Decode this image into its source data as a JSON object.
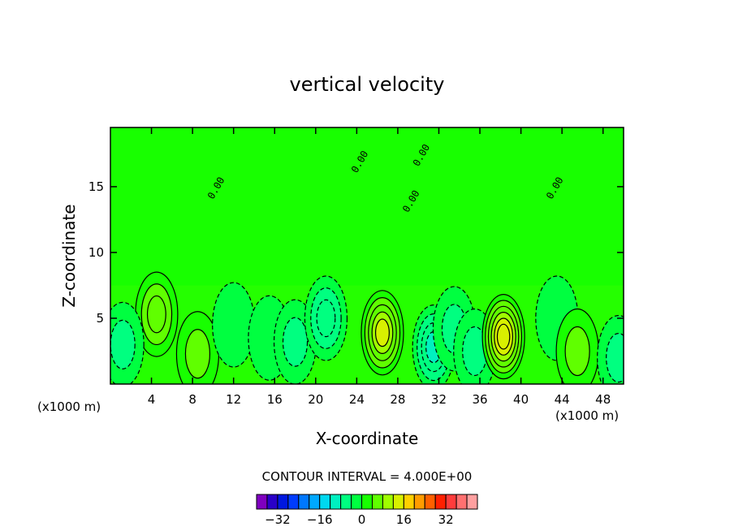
{
  "chart_data": {
    "type": "heatmap",
    "title": "vertical velocity",
    "xlabel": "X-coordinate",
    "ylabel": "Z-coordinate",
    "x_unit_left": "(x1000 m)",
    "x_unit_right": "(x1000 m)",
    "xlim": [
      0,
      50
    ],
    "ylim": [
      0,
      19.5
    ],
    "x_ticks": [
      "4",
      "8",
      "12",
      "16",
      "20",
      "24",
      "28",
      "32",
      "36",
      "40",
      "44",
      "48"
    ],
    "y_ticks": [
      "5",
      "10",
      "15"
    ],
    "contour_label": "CONTOUR INTERVAL = 4.000E+00",
    "contour_interval": 4,
    "contour_labels_on_plot": [
      "0.00",
      "0.00",
      "0.00",
      "0.00",
      "0.00"
    ],
    "colorbar": {
      "tick_labels": [
        "−32",
        "−16",
        "0",
        "16",
        "32"
      ],
      "tick_values": [
        -32,
        -16,
        0,
        16,
        32
      ],
      "colors": [
        "#7f00bf",
        "#2a00c8",
        "#0018e0",
        "#003cff",
        "#0078ff",
        "#00a8ff",
        "#00d8f0",
        "#00f0c0",
        "#00ff80",
        "#00ff40",
        "#18ff00",
        "#60ff00",
        "#a0ff00",
        "#d8f000",
        "#ffd000",
        "#ff9c00",
        "#ff6000",
        "#ff2000",
        "#ff3c3c",
        "#ff7070",
        "#ffa0a0"
      ]
    },
    "features": [
      {
        "x": 4.5,
        "z": 5.3,
        "w": 1.8
      },
      {
        "x": 8.5,
        "z": 2.3,
        "w": 1.5
      },
      {
        "x": 12,
        "z": 4.5,
        "w": -0.4
      },
      {
        "x": 15.5,
        "z": 3.5,
        "w": -0.9
      },
      {
        "x": 18,
        "z": 3.2,
        "w": -1.0
      },
      {
        "x": 21,
        "z": 5.0,
        "w": -1.6
      },
      {
        "x": 26.5,
        "z": 3.9,
        "w": 3.0
      },
      {
        "x": 31.5,
        "z": 2.8,
        "w": -2.2
      },
      {
        "x": 33.5,
        "z": 4.2,
        "w": -1.0
      },
      {
        "x": 35.5,
        "z": 2.5,
        "w": -1.2
      },
      {
        "x": 38.3,
        "z": 3.6,
        "w": 3.8
      },
      {
        "x": 43.5,
        "z": 5.0,
        "w": -0.7
      },
      {
        "x": 45.5,
        "z": 2.5,
        "w": 1.1
      },
      {
        "x": 49.5,
        "z": 2.0,
        "w": -1.4
      },
      {
        "x": 1.2,
        "z": 3.0,
        "w": -1.5
      }
    ]
  }
}
